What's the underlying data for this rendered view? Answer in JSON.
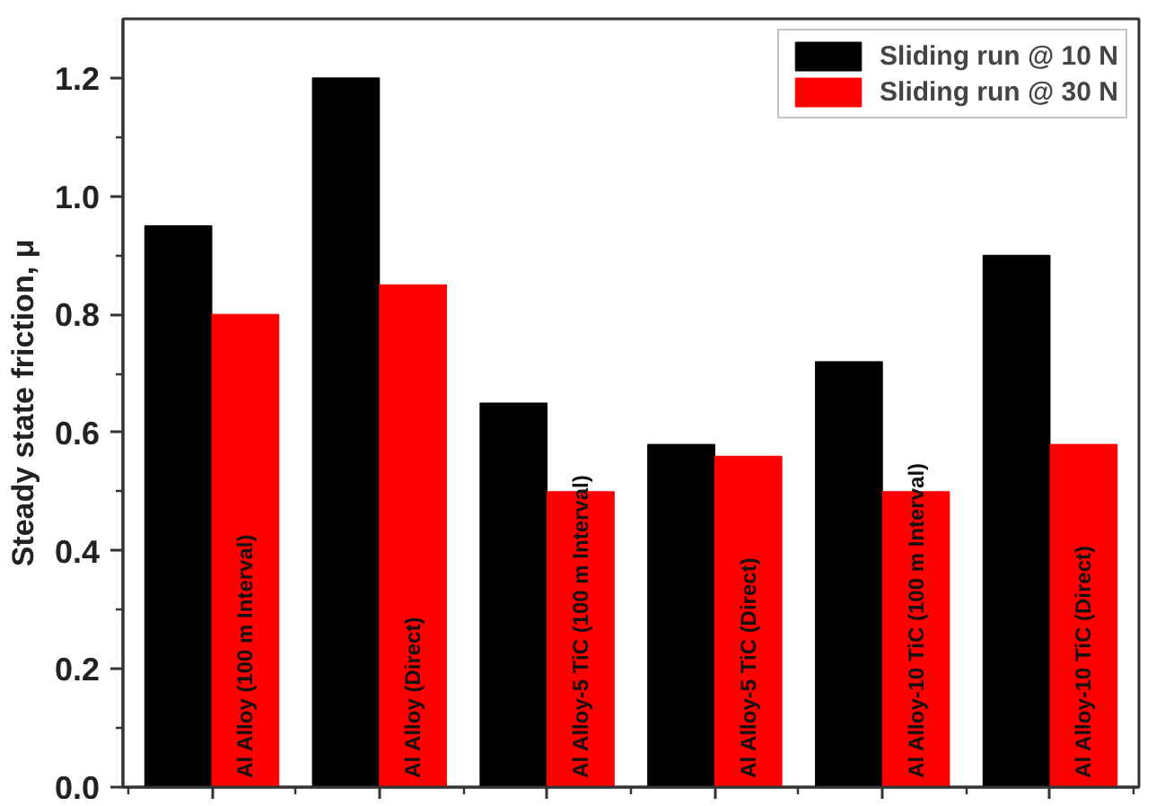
{
  "chart_data": {
    "type": "bar",
    "ylabel": "Steady state friction, μ",
    "categories": [
      "Al Alloy (100 m Interval)",
      "Al Alloy (Direct)",
      "Al Alloy-5 TiC (100 m Interval)",
      "Al Alloy-5 TiC (Direct)",
      "Al Alloy-10 TiC (100 m Interval)",
      "Al Alloy-10 TiC (Direct)"
    ],
    "series": [
      {
        "name": "Sliding run @ 10 N",
        "color": "#000000",
        "values": [
          0.95,
          1.2,
          0.65,
          0.58,
          0.72,
          0.9
        ]
      },
      {
        "name": "Sliding run @ 30 N",
        "color": "#ff0000",
        "values": [
          0.8,
          0.85,
          0.5,
          0.56,
          0.5,
          0.58
        ]
      }
    ],
    "ylim": [
      0,
      1.3
    ],
    "yticks": [
      {
        "value": 0,
        "label": "0.0"
      },
      {
        "value": 0.1,
        "label": null
      },
      0.2,
      {
        "value": 0.3,
        "label": null
      },
      0.4,
      {
        "value": 0.5,
        "label": null
      },
      0.6,
      {
        "value": 0.7,
        "label": null
      },
      0.8,
      {
        "value": 0.9,
        "label": null
      },
      {
        "value": 1,
        "label": "1.0"
      },
      {
        "value": 1.1,
        "label": null
      },
      1.2
    ],
    "legend": "top right"
  }
}
